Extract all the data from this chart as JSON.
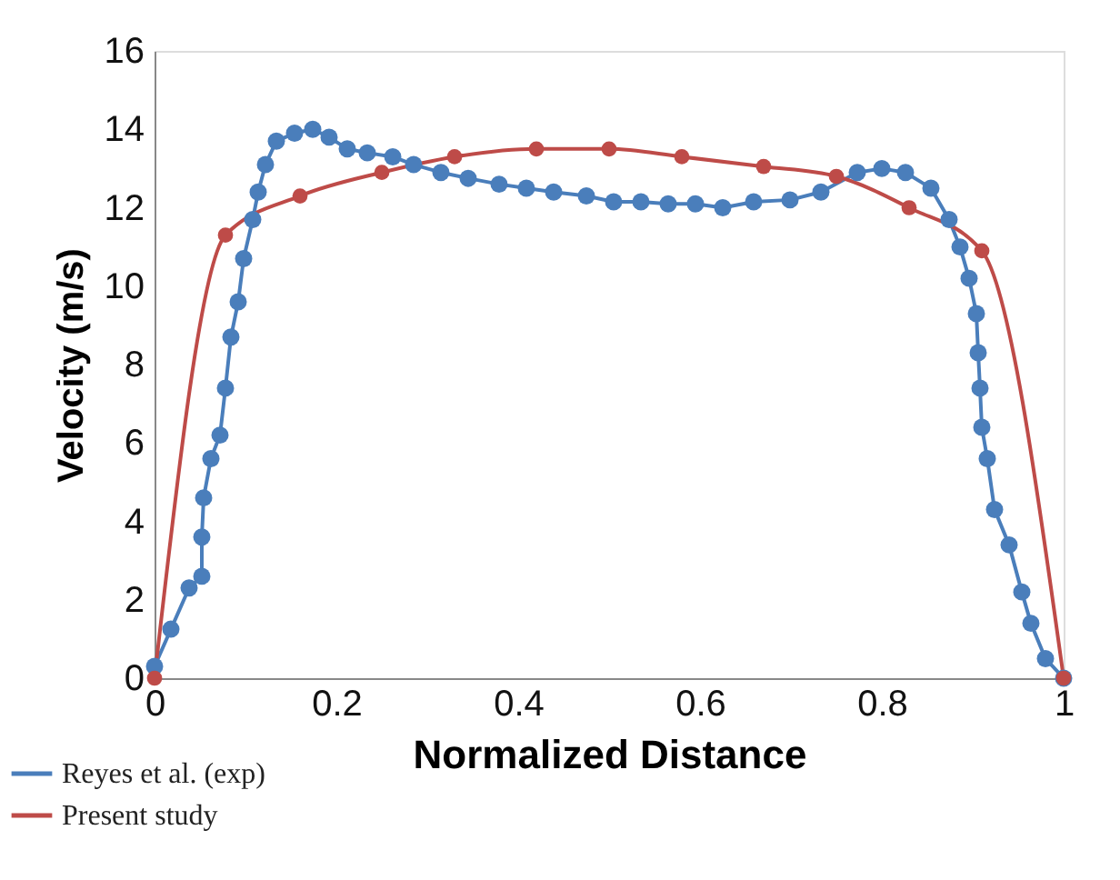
{
  "chart_data": {
    "type": "line",
    "xlabel": "Normalized Distance",
    "ylabel": "Velocity (m/s)",
    "xlim": [
      0,
      1
    ],
    "xticks": [
      0,
      0.2,
      0.4,
      0.6,
      0.8,
      1
    ],
    "ylim": [
      0,
      16
    ],
    "yticks": [
      0,
      2,
      4,
      6,
      8,
      10,
      12,
      14,
      16
    ],
    "grid": false,
    "legend": "bottom left",
    "marker": "circle",
    "line_style": "solid",
    "series": [
      {
        "name": "Reyes et al. (exp)",
        "color": "#4a7ebb",
        "x": [
          0,
          0.018,
          0.038,
          0.052,
          0.052,
          0.054,
          0.062,
          0.072,
          0.078,
          0.084,
          0.092,
          0.098,
          0.108,
          0.114,
          0.122,
          0.134,
          0.154,
          0.174,
          0.192,
          0.212,
          0.234,
          0.262,
          0.285,
          0.315,
          0.345,
          0.379,
          0.409,
          0.439,
          0.475,
          0.505,
          0.535,
          0.565,
          0.595,
          0.625,
          0.659,
          0.699,
          0.733,
          0.773,
          0.8,
          0.826,
          0.854,
          0.874,
          0.886,
          0.896,
          0.904,
          0.906,
          0.908,
          0.91,
          0.916,
          0.924,
          0.94,
          0.954,
          0.964,
          0.98,
          1.0
        ],
        "values": [
          0.3,
          1.25,
          2.3,
          2.6,
          3.6,
          4.6,
          5.6,
          6.2,
          7.4,
          8.7,
          9.6,
          10.7,
          11.7,
          12.4,
          13.1,
          13.7,
          13.9,
          14.0,
          13.8,
          13.5,
          13.4,
          13.3,
          13.1,
          12.9,
          12.75,
          12.6,
          12.5,
          12.4,
          12.3,
          12.15,
          12.15,
          12.1,
          12.1,
          12.0,
          12.15,
          12.2,
          12.4,
          12.9,
          13.0,
          12.9,
          12.5,
          11.7,
          11.0,
          10.2,
          9.3,
          8.3,
          7.4,
          6.4,
          5.6,
          4.3,
          3.4,
          2.2,
          1.4,
          0.5,
          0.0
        ]
      },
      {
        "name": "Present study",
        "color": "#be4b48",
        "x": [
          0,
          0.078,
          0.16,
          0.25,
          0.33,
          0.42,
          0.5,
          0.58,
          0.67,
          0.75,
          0.83,
          0.91,
          1.0
        ],
        "values": [
          0,
          11.3,
          12.3,
          12.9,
          13.3,
          13.5,
          13.5,
          13.3,
          13.05,
          12.8,
          12.0,
          10.9,
          0
        ]
      }
    ]
  }
}
